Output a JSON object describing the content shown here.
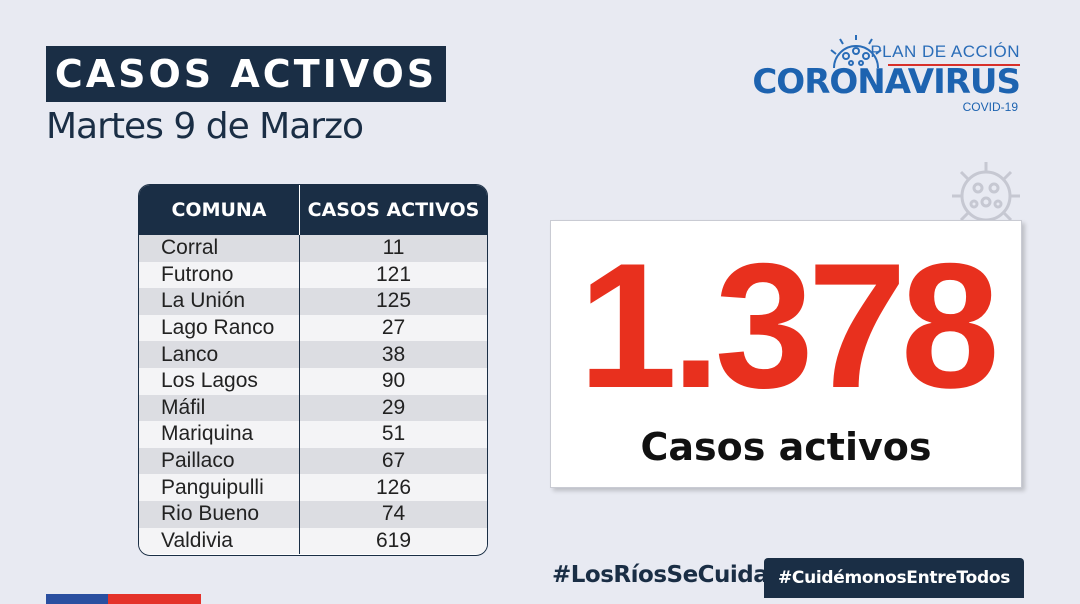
{
  "header": {
    "title": "CASOS ACTIVOS",
    "subtitle": "Martes 9 de Marzo"
  },
  "logo": {
    "plan": "PLAN DE ACCIÓN",
    "name": "CORONAVIRUS",
    "sub": "COVID-19",
    "icon": "virus-icon"
  },
  "table": {
    "headers": [
      "COMUNA",
      "CASOS ACTIVOS"
    ],
    "rows": [
      [
        "Corral",
        "11"
      ],
      [
        "Futrono",
        "121"
      ],
      [
        "La Unión",
        "125"
      ],
      [
        "Lago Ranco",
        "27"
      ],
      [
        "Lanco",
        "38"
      ],
      [
        "Los Lagos",
        "90"
      ],
      [
        "Máfil",
        "29"
      ],
      [
        "Mariquina",
        "51"
      ],
      [
        "Paillaco",
        "67"
      ],
      [
        "Panguipulli",
        "126"
      ],
      [
        "Rio Bueno",
        "74"
      ],
      [
        "Valdivia",
        "619"
      ]
    ]
  },
  "total": {
    "value": "1.378",
    "label": "Casos activos"
  },
  "footer": {
    "hashtag1": "#LosRíosSeCuida",
    "hashtag2": "#CuidémonosEntreTodos"
  },
  "colors": {
    "navy": "#1a2e45",
    "red": "#e8301e",
    "blue": "#1d63b0",
    "background": "#e8eaf2"
  }
}
